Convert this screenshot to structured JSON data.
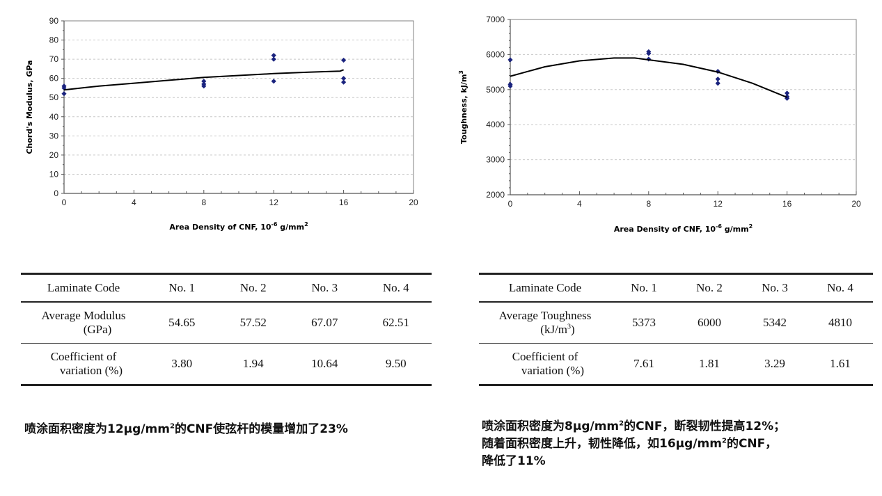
{
  "chart_data": [
    {
      "type": "scatter",
      "title": "",
      "xlabel": "Area Density of CNF, 10^-6 g/mm^2",
      "xlabel_parts": {
        "base": "Area Density of CNF, 10",
        "exp1": "-6",
        "mid": " g/mm",
        "exp2": "2"
      },
      "ylabel": "Chord's Modulus, GPa",
      "xlim": [
        0,
        20
      ],
      "ylim": [
        0,
        90
      ],
      "x_ticks": [
        0,
        4,
        8,
        12,
        16,
        20
      ],
      "y_ticks": [
        0,
        10,
        20,
        30,
        40,
        50,
        60,
        70,
        80,
        90
      ],
      "grid": "horizontal dashed",
      "legend": "none",
      "series": [
        {
          "name": "measured",
          "marker": "diamond",
          "color": "#1a237e",
          "points": [
            [
              0,
              55
            ],
            [
              0,
              56
            ],
            [
              0,
              52
            ],
            [
              8,
              58.5
            ],
            [
              8,
              57
            ],
            [
              8,
              56
            ],
            [
              12,
              72
            ],
            [
              12,
              70
            ],
            [
              12,
              58.5
            ],
            [
              16,
              69.5
            ],
            [
              16,
              60
            ],
            [
              16,
              58
            ]
          ]
        },
        {
          "name": "trend",
          "style": "line",
          "color": "#000000",
          "points": [
            [
              0,
              54
            ],
            [
              2,
              56
            ],
            [
              4,
              57.5
            ],
            [
              6,
              59
            ],
            [
              8,
              60.5
            ],
            [
              10,
              61.5
            ],
            [
              12,
              62.5
            ],
            [
              14,
              63.2
            ],
            [
              15.8,
              63.8
            ],
            [
              16,
              64.5
            ]
          ]
        }
      ]
    },
    {
      "type": "scatter",
      "title": "",
      "xlabel": "Area Density of CNF, 10^-6 g/mm^2",
      "xlabel_parts": {
        "base": "Area Density of CNF, 10",
        "exp1": "-6",
        "mid": " g/mm",
        "exp2": "2"
      },
      "ylabel": "Toughness, kJ/m^3",
      "ylabel_parts": {
        "base": "Toughness, kJ/m",
        "exp": "3"
      },
      "xlim": [
        0,
        20
      ],
      "ylim": [
        2000,
        7000
      ],
      "x_ticks": [
        0,
        4,
        8,
        12,
        16,
        20
      ],
      "y_ticks": [
        2000,
        3000,
        4000,
        5000,
        6000,
        7000
      ],
      "grid": "horizontal dashed",
      "legend": "none",
      "series": [
        {
          "name": "measured",
          "marker": "diamond",
          "color": "#1a237e",
          "points": [
            [
              0,
              5850
            ],
            [
              0,
              5150
            ],
            [
              0,
              5100
            ],
            [
              8,
              6080
            ],
            [
              8,
              6030
            ],
            [
              8,
              5870
            ],
            [
              12,
              5520
            ],
            [
              12,
              5300
            ],
            [
              12,
              5180
            ],
            [
              16,
              4900
            ],
            [
              16,
              4800
            ],
            [
              16,
              4750
            ]
          ]
        },
        {
          "name": "trend",
          "style": "line",
          "color": "#000000",
          "points": [
            [
              0,
              5380
            ],
            [
              2,
              5650
            ],
            [
              4,
              5820
            ],
            [
              6,
              5900
            ],
            [
              7.2,
              5900
            ],
            [
              8,
              5850
            ],
            [
              10,
              5720
            ],
            [
              12,
              5500
            ],
            [
              14,
              5180
            ],
            [
              16,
              4780
            ]
          ]
        }
      ]
    }
  ],
  "tables": [
    {
      "header": [
        "Laminate Code",
        "No. 1",
        "No. 2",
        "No. 3",
        "No. 4"
      ],
      "rows": [
        {
          "label_line1": "Average Modulus",
          "label_line2": "(GPa)",
          "values": [
            "54.65",
            "57.52",
            "67.07",
            "62.51"
          ]
        },
        {
          "label_line1": "Coefficient of",
          "label_line2": "variation (%)",
          "values": [
            "3.80",
            "1.94",
            "10.64",
            "9.50"
          ]
        }
      ]
    },
    {
      "header": [
        "Laminate Code",
        "No. 1",
        "No. 2",
        "No. 3",
        "No. 4"
      ],
      "rows": [
        {
          "label_line1": "Average Toughness",
          "label_line2_base": "(kJ/m",
          "label_line2_sup": "3",
          "label_line2_end": ")",
          "values": [
            "5373",
            "6000",
            "5342",
            "4810"
          ]
        },
        {
          "label_line1": "Coefficient of",
          "label_line2": "variation (%)",
          "values": [
            "7.61",
            "1.81",
            "3.29",
            "1.61"
          ]
        }
      ]
    }
  ],
  "captions": {
    "left": {
      "a": "喷涂面积密度为12μg/mm",
      "sup": "2",
      "b": "的CNF使弦杆的模量增加了23%"
    },
    "right": {
      "line1a": "喷涂面积密度为8μg/mm",
      "line1sup": "2",
      "line1b": "的CNF，断裂韧性提高12%；",
      "line2a": "随着面积密度上升，韧性降低，如16μg/mm",
      "line2sup": "2",
      "line2b": "的CNF，",
      "line3": "降低了11%"
    }
  }
}
